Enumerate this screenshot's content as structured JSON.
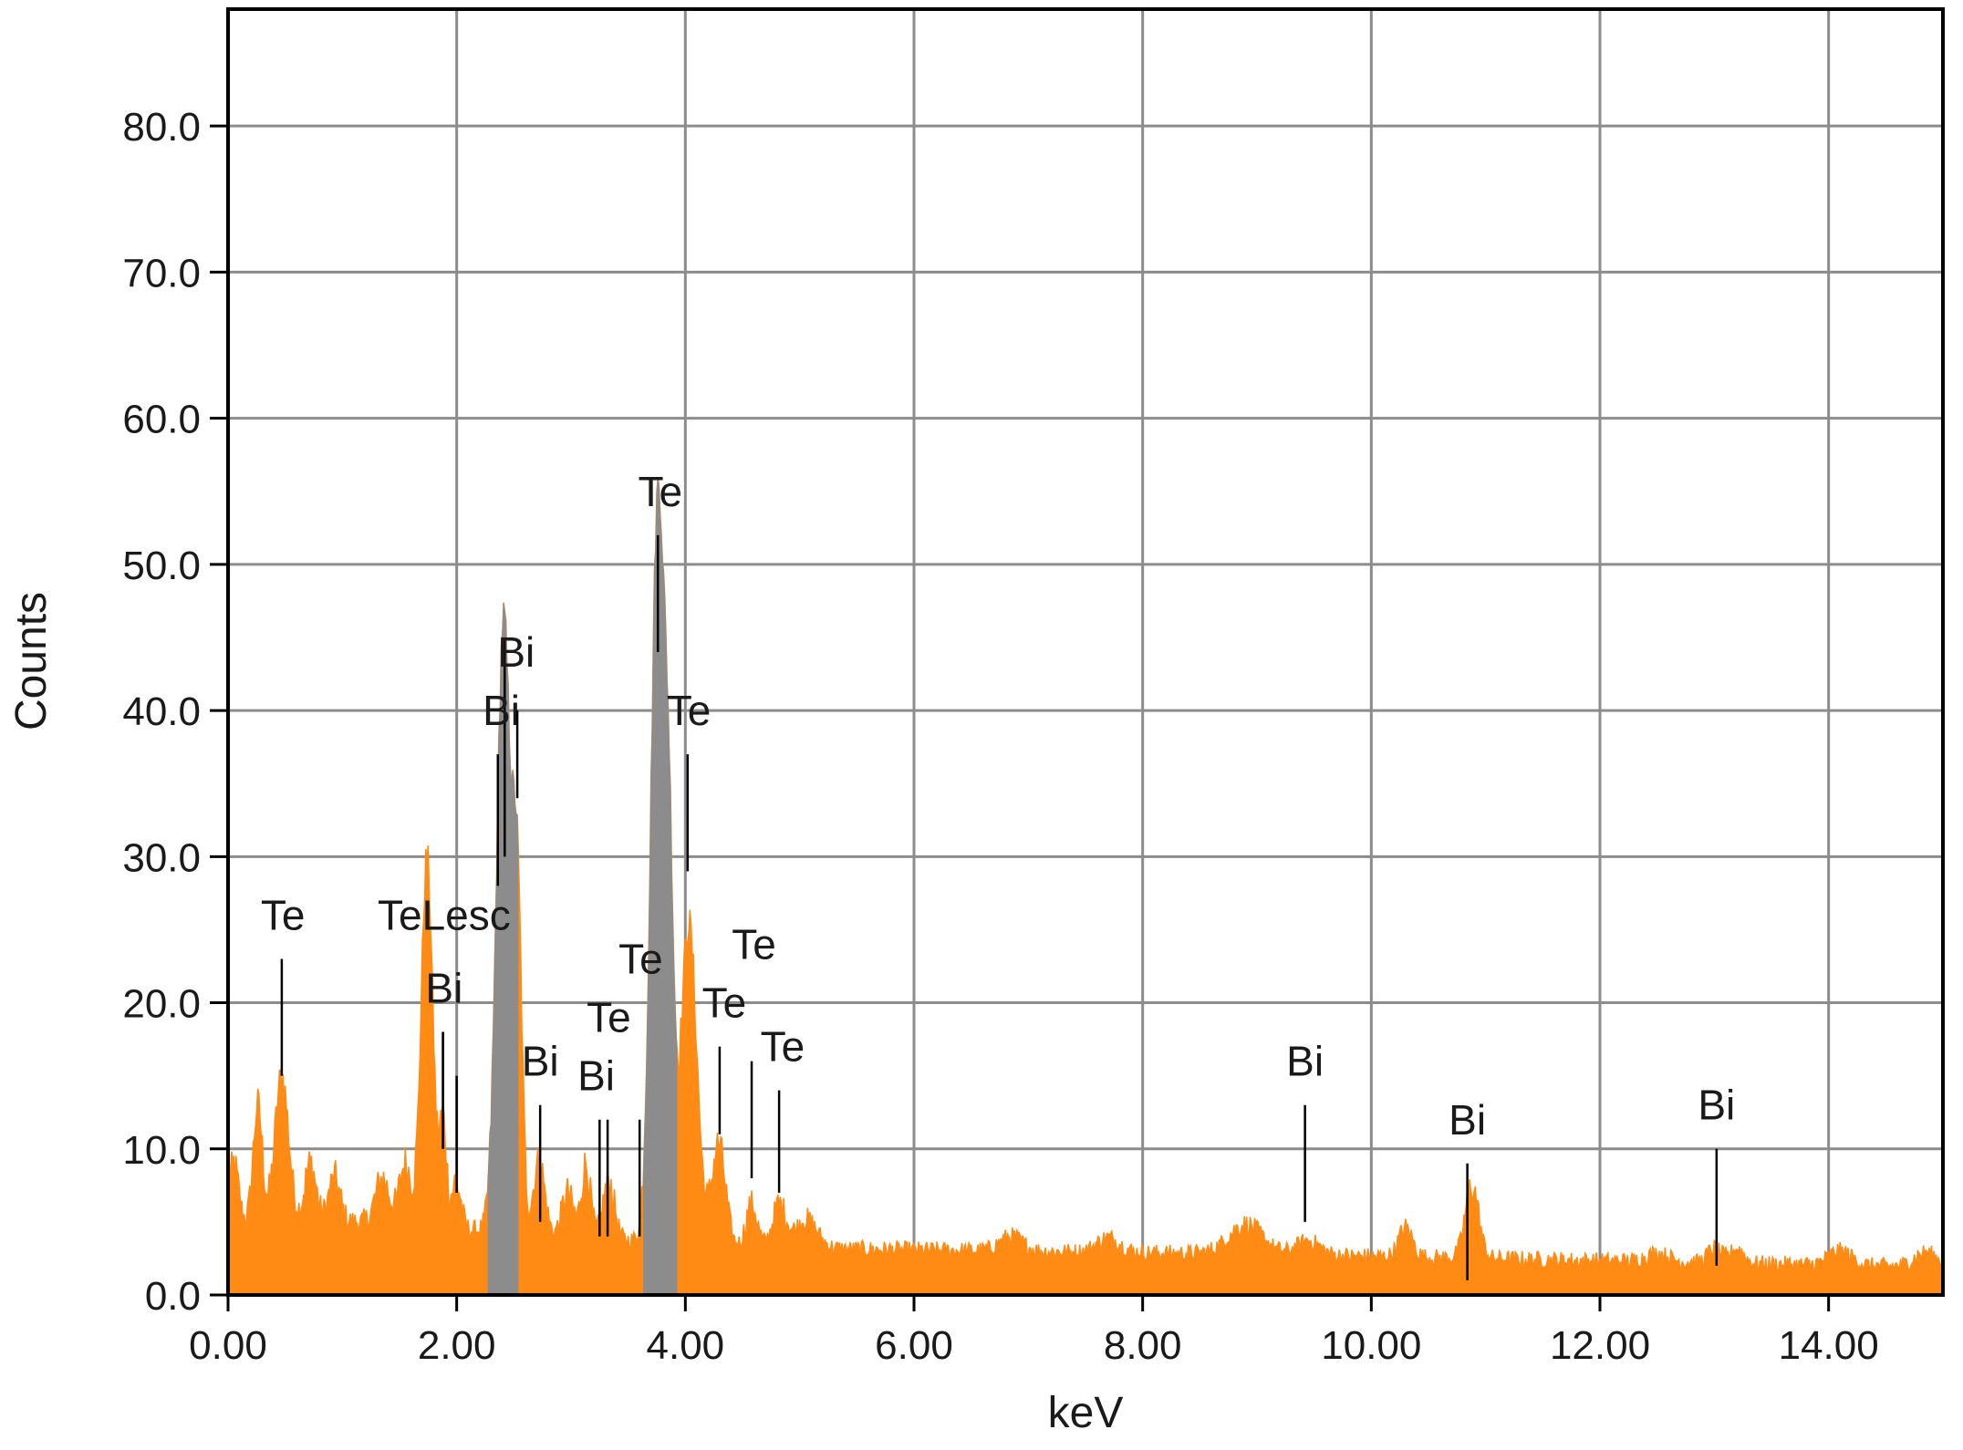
{
  "chart_data": {
    "type": "area",
    "title": "",
    "xlabel": "keV",
    "ylabel": "Counts",
    "xlim": [
      0,
      15
    ],
    "ylim": [
      0,
      88
    ],
    "grid": true,
    "legend": "none",
    "colors": {
      "spectrum": "#FF8A14",
      "roi": "#8C8C8C",
      "grid": "#8C8C8C",
      "axis": "#000000"
    },
    "x_ticks": [
      0,
      2,
      4,
      6,
      8,
      10,
      12,
      14
    ],
    "x_tick_labels": [
      "0.00",
      "2.00",
      "4.00",
      "6.00",
      "8.00",
      "10.00",
      "12.00",
      "14.00"
    ],
    "y_ticks": [
      0,
      10,
      20,
      30,
      40,
      50,
      60,
      70,
      80
    ],
    "y_tick_labels": [
      "0.0",
      "10.0",
      "20.0",
      "30.0",
      "40.0",
      "50.0",
      "60.0",
      "70.0",
      "80.0"
    ],
    "roi_bands": [
      [
        2.27,
        2.54
      ],
      [
        3.63,
        3.93
      ]
    ],
    "spectrum_peaks": [
      [
        0.05,
        4,
        0.04
      ],
      [
        0.26,
        8,
        0.04
      ],
      [
        0.47,
        10,
        0.06
      ],
      [
        0.72,
        4,
        0.05
      ],
      [
        0.93,
        3,
        0.05
      ],
      [
        1.35,
        3,
        0.06
      ],
      [
        1.55,
        4,
        0.05
      ],
      [
        1.74,
        25,
        0.05
      ],
      [
        1.88,
        7,
        0.03
      ],
      [
        2.0,
        3,
        0.04
      ],
      [
        2.41,
        42,
        0.06
      ],
      [
        2.53,
        22,
        0.04
      ],
      [
        2.72,
        5,
        0.05
      ],
      [
        2.97,
        3,
        0.05
      ],
      [
        3.13,
        5,
        0.04
      ],
      [
        3.33,
        4,
        0.05
      ],
      [
        3.76,
        51,
        0.06
      ],
      [
        3.86,
        20,
        0.04
      ],
      [
        4.03,
        22,
        0.07
      ],
      [
        4.29,
        7,
        0.06
      ],
      [
        4.58,
        3,
        0.05
      ],
      [
        4.82,
        3,
        0.06
      ],
      [
        5.05,
        2,
        0.1
      ],
      [
        6.85,
        1,
        0.1
      ],
      [
        7.7,
        1,
        0.1
      ],
      [
        8.9,
        2,
        0.15
      ],
      [
        9.45,
        1,
        0.1
      ],
      [
        10.3,
        2,
        0.06
      ],
      [
        10.88,
        5,
        0.06
      ],
      [
        12.5,
        0.6,
        0.1
      ],
      [
        13.0,
        1,
        0.06
      ],
      [
        13.2,
        1,
        0.06
      ],
      [
        14.1,
        1,
        0.1
      ],
      [
        14.85,
        1,
        0.1
      ]
    ],
    "markers": [
      {
        "label": "Te",
        "x": 0.47,
        "y_top": 23,
        "y_bottom": 15,
        "label_x": 0.48,
        "label_y": 25
      },
      {
        "label": "TeLesc",
        "x": 1.88,
        "y_top": 18,
        "y_bottom": 10,
        "label_x": 1.89,
        "label_y": 25
      },
      {
        "label": "Bi",
        "x": 1.88,
        "y_top": 18,
        "y_bottom": 10,
        "label_x": 1.89,
        "label_y": 20
      },
      {
        "label": "Bi",
        "x": 2.0,
        "y_top": 15,
        "y_bottom": 7,
        "label_x": 2.0,
        "label_y": 0
      },
      {
        "label": "Bi",
        "x": 2.42,
        "y_top": 45,
        "y_bottom": 30,
        "label_x": 2.52,
        "label_y": 43
      },
      {
        "label": "Bi",
        "x": 2.36,
        "y_top": 37,
        "y_bottom": 28,
        "label_x": 2.39,
        "label_y": 39
      },
      {
        "label": "Bi",
        "x": 2.53,
        "y_top": 40,
        "y_bottom": 34,
        "label_x": 2.53,
        "label_y": 0
      },
      {
        "label": "Bi",
        "x": 2.73,
        "y_top": 13,
        "y_bottom": 5,
        "label_x": 2.73,
        "label_y": 15
      },
      {
        "label": "Bi",
        "x": 3.25,
        "y_top": 12,
        "y_bottom": 4,
        "label_x": 3.22,
        "label_y": 14
      },
      {
        "label": "Te",
        "x": 3.32,
        "y_top": 12,
        "y_bottom": 4,
        "label_x": 3.33,
        "label_y": 18
      },
      {
        "label": "Te",
        "x": 3.6,
        "y_top": 12,
        "y_bottom": 4,
        "label_x": 3.61,
        "label_y": 22
      },
      {
        "label": "Te",
        "x": 3.76,
        "y_top": 52,
        "y_bottom": 44,
        "label_x": 3.78,
        "label_y": 54
      },
      {
        "label": "Te",
        "x": 4.02,
        "y_top": 37,
        "y_bottom": 29,
        "label_x": 4.03,
        "label_y": 39
      },
      {
        "label": "Te",
        "x": 4.3,
        "y_top": 17,
        "y_bottom": 11,
        "label_x": 4.34,
        "label_y": 19
      },
      {
        "label": "Te",
        "x": 4.58,
        "y_top": 16,
        "y_bottom": 8,
        "label_x": 4.6,
        "label_y": 23
      },
      {
        "label": "Te",
        "x": 4.82,
        "y_top": 14,
        "y_bottom": 7,
        "label_x": 4.85,
        "label_y": 16
      },
      {
        "label": "Bi",
        "x": 9.42,
        "y_top": 13,
        "y_bottom": 5,
        "label_x": 9.42,
        "label_y": 15
      },
      {
        "label": "Bi",
        "x": 10.84,
        "y_top": 9,
        "y_bottom": 1,
        "label_x": 10.84,
        "label_y": 11
      },
      {
        "label": "Bi",
        "x": 13.02,
        "y_top": 10,
        "y_bottom": 2,
        "label_x": 13.02,
        "label_y": 12
      }
    ]
  }
}
